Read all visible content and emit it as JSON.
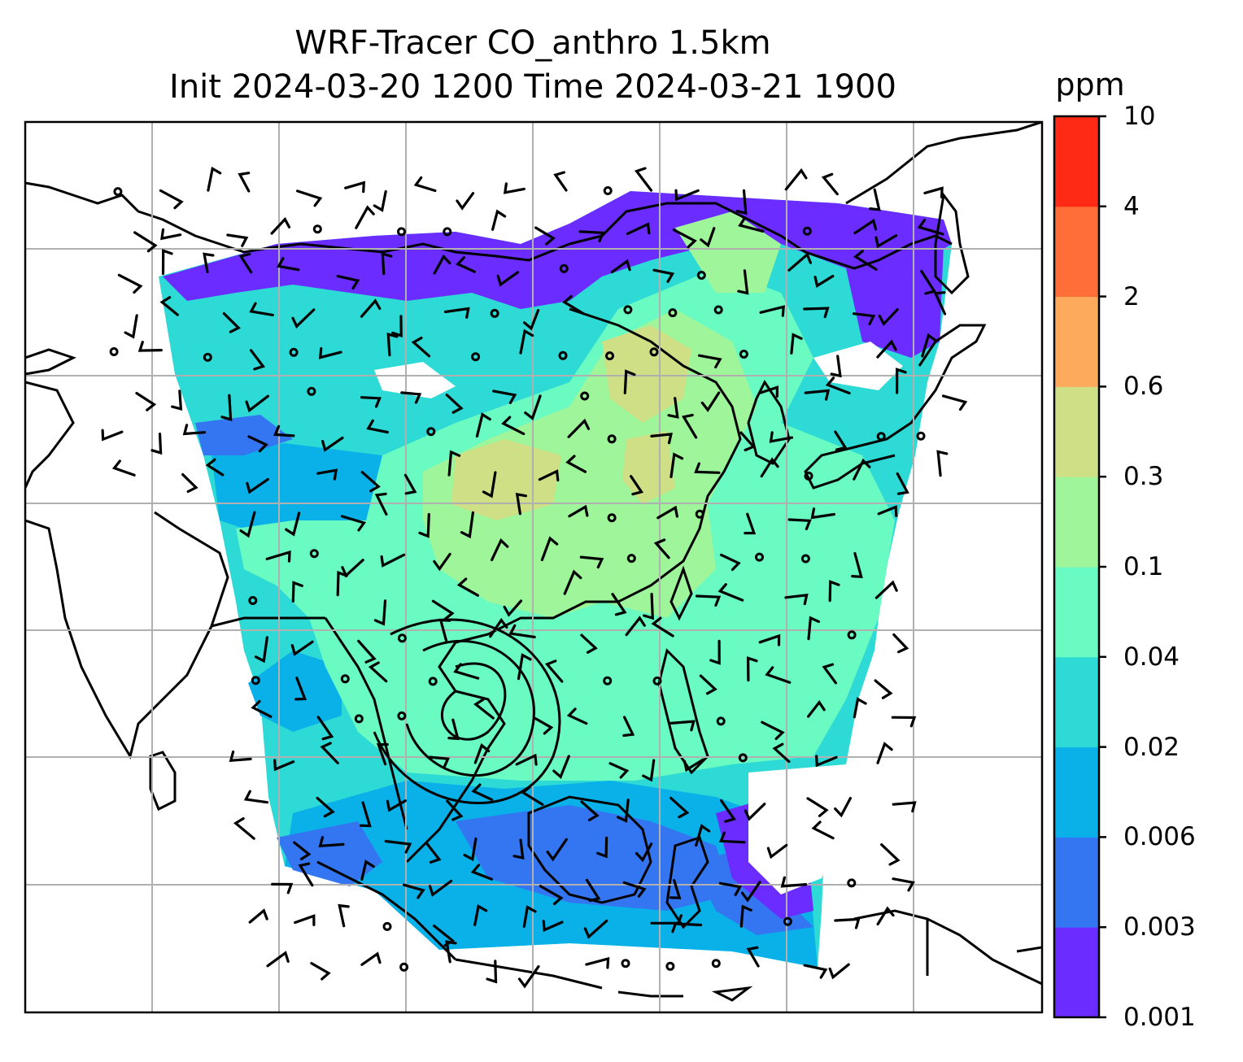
{
  "title": {
    "line1": "WRF-Tracer CO_anthro 1.5km",
    "line2": "Init 2024-03-20 1200 Time 2024-03-21 1900"
  },
  "colorbar": {
    "unit": "ppm",
    "levels": [
      "0.001",
      "0.003",
      "0.006",
      "0.02",
      "0.04",
      "0.1",
      "0.3",
      "0.6",
      "2",
      "4",
      "10"
    ],
    "colors": [
      "#6a2cff",
      "#3476f2",
      "#09b1e8",
      "#2edad5",
      "#69fbc2",
      "#9ef59a",
      "#cfdf86",
      "#fdaa5c",
      "#fe6e39",
      "#fe2a16"
    ]
  },
  "map": {
    "field": "CO_anthro",
    "background": "#ffffff",
    "gridline_color": "#b0b0b0",
    "coastline_color": "#000000",
    "overlays": [
      "wind-barbs",
      "calm-circles",
      "streamlines",
      "coastlines",
      "lat-lon-grid"
    ]
  }
}
